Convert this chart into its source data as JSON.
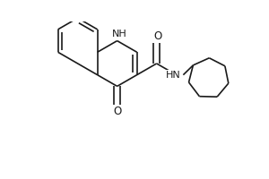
{
  "background_color": "#ffffff",
  "line_color": "#1a1a1a",
  "lw": 1.2,
  "figsize": [
    3.0,
    2.0
  ],
  "dpi": 100,
  "xlim": [
    0,
    3.0
  ],
  "ylim": [
    0,
    2.0
  ],
  "BL": 0.33,
  "dbg": 0.055
}
